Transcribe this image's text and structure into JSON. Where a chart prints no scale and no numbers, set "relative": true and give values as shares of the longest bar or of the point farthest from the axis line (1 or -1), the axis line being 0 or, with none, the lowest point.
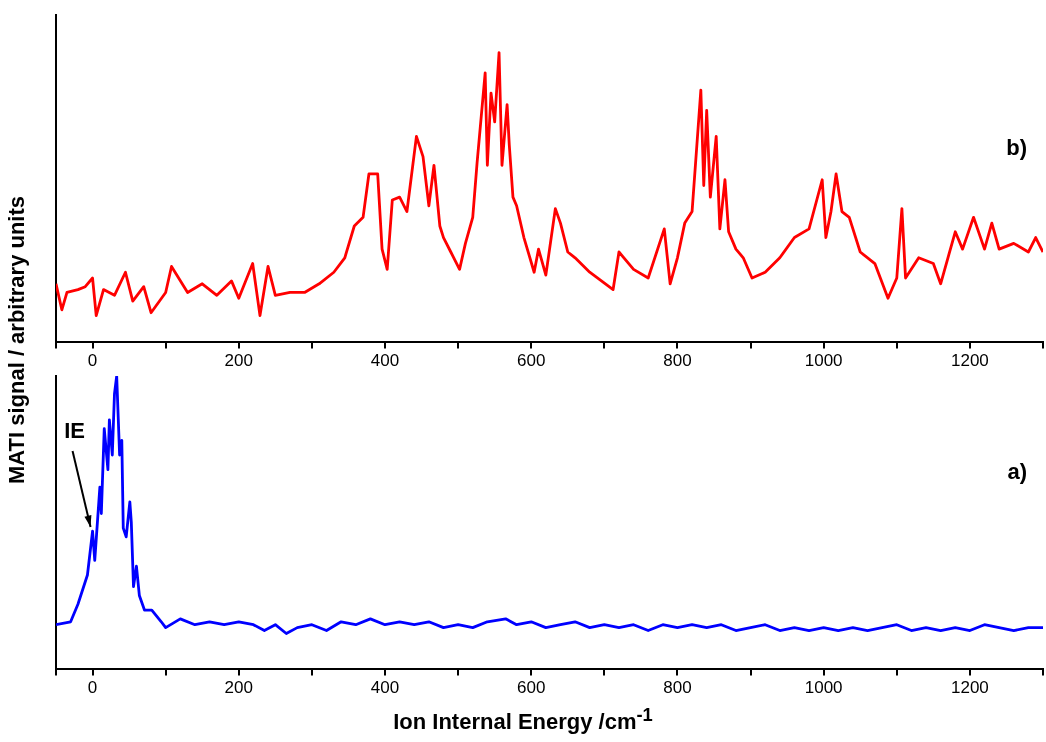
{
  "chart_data": [
    {
      "type": "line",
      "relative": true,
      "marker": "none",
      "tick_labels": "x",
      "ylabel": "MATI signal / arbitrary units",
      "xlim": [
        -50,
        1300
      ],
      "xticks": [
        {
          "value": -50,
          "label": null
        },
        0,
        {
          "value": 100,
          "label": null
        },
        200,
        {
          "value": 300,
          "label": null
        },
        400,
        {
          "value": 500,
          "label": null
        },
        600,
        {
          "value": 700,
          "label": null
        },
        800,
        {
          "value": 900,
          "label": null
        },
        1000,
        {
          "value": 1100,
          "label": null
        },
        1200,
        {
          "value": 1300,
          "label": null
        }
      ],
      "annotations": [
        "b)"
      ],
      "series": [
        {
          "color": "#ff0000",
          "x": [
            -50,
            -42,
            -35,
            -20,
            -10,
            0,
            5,
            15,
            30,
            45,
            55,
            70,
            80,
            100,
            108,
            130,
            150,
            170,
            190,
            200,
            219,
            229,
            240,
            250,
            270,
            290,
            310,
            330,
            345,
            358,
            370,
            378,
            390,
            396,
            403,
            410,
            420,
            430,
            443,
            452,
            460,
            467,
            475,
            480,
            490,
            502,
            510,
            520,
            526,
            537,
            540,
            545,
            550,
            556,
            560,
            567,
            570,
            575,
            580,
            590,
            604,
            610,
            620,
            633,
            640,
            650,
            660,
            680,
            712,
            720,
            740,
            760,
            782,
            790,
            800,
            810,
            820,
            832,
            836,
            840,
            845,
            853,
            858,
            865,
            870,
            880,
            890,
            902,
            920,
            940,
            960,
            980,
            998,
            1003,
            1010,
            1017,
            1025,
            1035,
            1050,
            1070,
            1088,
            1100,
            1107,
            1112,
            1130,
            1150,
            1160,
            1170,
            1180,
            1190,
            1205,
            1220,
            1230,
            1240,
            1260,
            1280,
            1290,
            1300
          ],
          "values": [
            0.2,
            0.11,
            0.17,
            0.18,
            0.19,
            0.22,
            0.09,
            0.18,
            0.16,
            0.24,
            0.14,
            0.19,
            0.1,
            0.17,
            0.26,
            0.17,
            0.2,
            0.16,
            0.21,
            0.15,
            0.27,
            0.09,
            0.26,
            0.16,
            0.17,
            0.17,
            0.2,
            0.24,
            0.29,
            0.4,
            0.43,
            0.58,
            0.58,
            0.32,
            0.25,
            0.49,
            0.5,
            0.45,
            0.71,
            0.64,
            0.47,
            0.61,
            0.4,
            0.36,
            0.31,
            0.25,
            0.34,
            0.43,
            0.62,
            0.93,
            0.61,
            0.86,
            0.76,
            1.0,
            0.61,
            0.82,
            0.68,
            0.5,
            0.47,
            0.36,
            0.24,
            0.32,
            0.23,
            0.46,
            0.41,
            0.31,
            0.29,
            0.24,
            0.18,
            0.31,
            0.25,
            0.22,
            0.39,
            0.2,
            0.29,
            0.41,
            0.45,
            0.87,
            0.54,
            0.8,
            0.5,
            0.71,
            0.39,
            0.56,
            0.38,
            0.32,
            0.29,
            0.22,
            0.24,
            0.29,
            0.36,
            0.39,
            0.56,
            0.36,
            0.45,
            0.58,
            0.45,
            0.43,
            0.31,
            0.27,
            0.15,
            0.22,
            0.46,
            0.22,
            0.29,
            0.27,
            0.2,
            0.29,
            0.38,
            0.32,
            0.43,
            0.32,
            0.41,
            0.32,
            0.34,
            0.31,
            0.36,
            0.31
          ]
        }
      ]
    },
    {
      "type": "line",
      "relative": true,
      "marker": "none",
      "tick_labels": "x",
      "xlabel": "Ion Internal Energy /cm$^{-1}$",
      "xlim": [
        -50,
        1300
      ],
      "xticks": [
        {
          "value": -50,
          "label": null
        },
        0,
        {
          "value": 100,
          "label": null
        },
        200,
        {
          "value": 300,
          "label": null
        },
        400,
        {
          "value": 500,
          "label": null
        },
        600,
        {
          "value": 700,
          "label": null
        },
        800,
        {
          "value": 900,
          "label": null
        },
        1000,
        {
          "value": 1100,
          "label": null
        },
        1200,
        {
          "value": 1300,
          "label": null
        }
      ],
      "annotations": [
        "a)",
        {
          "text": "IE",
          "x": 0,
          "y": 0.47
        }
      ],
      "series": [
        {
          "color": "#0000ff",
          "x": [
            -50,
            -30,
            -20,
            -7,
            0,
            3,
            10,
            12,
            16,
            21,
            23,
            27,
            30,
            33,
            37,
            40,
            42,
            46,
            51,
            53,
            56,
            60,
            64,
            71,
            81,
            94,
            100,
            120,
            140,
            160,
            180,
            200,
            220,
            235,
            250,
            265,
            280,
            300,
            320,
            340,
            360,
            380,
            400,
            420,
            440,
            460,
            480,
            500,
            520,
            540,
            565,
            580,
            600,
            620,
            640,
            660,
            680,
            700,
            720,
            740,
            760,
            780,
            800,
            820,
            840,
            860,
            880,
            900,
            920,
            940,
            960,
            980,
            1000,
            1020,
            1040,
            1060,
            1080,
            1100,
            1120,
            1140,
            1160,
            1180,
            1200,
            1220,
            1240,
            1260,
            1280,
            1300
          ],
          "values": [
            0.15,
            0.16,
            0.22,
            0.32,
            0.47,
            0.37,
            0.62,
            0.53,
            0.82,
            0.68,
            0.85,
            0.73,
            0.94,
            1.0,
            0.73,
            0.78,
            0.48,
            0.45,
            0.57,
            0.5,
            0.28,
            0.35,
            0.25,
            0.2,
            0.2,
            0.16,
            0.14,
            0.17,
            0.15,
            0.16,
            0.15,
            0.16,
            0.15,
            0.13,
            0.15,
            0.12,
            0.14,
            0.15,
            0.13,
            0.16,
            0.15,
            0.17,
            0.15,
            0.16,
            0.15,
            0.16,
            0.14,
            0.15,
            0.14,
            0.16,
            0.17,
            0.15,
            0.16,
            0.14,
            0.15,
            0.16,
            0.14,
            0.15,
            0.14,
            0.15,
            0.13,
            0.15,
            0.14,
            0.15,
            0.14,
            0.15,
            0.13,
            0.14,
            0.15,
            0.13,
            0.14,
            0.13,
            0.14,
            0.13,
            0.14,
            0.13,
            0.14,
            0.15,
            0.13,
            0.14,
            0.13,
            0.14,
            0.13,
            0.15,
            0.14,
            0.13,
            0.14,
            0.14
          ]
        }
      ]
    }
  ]
}
